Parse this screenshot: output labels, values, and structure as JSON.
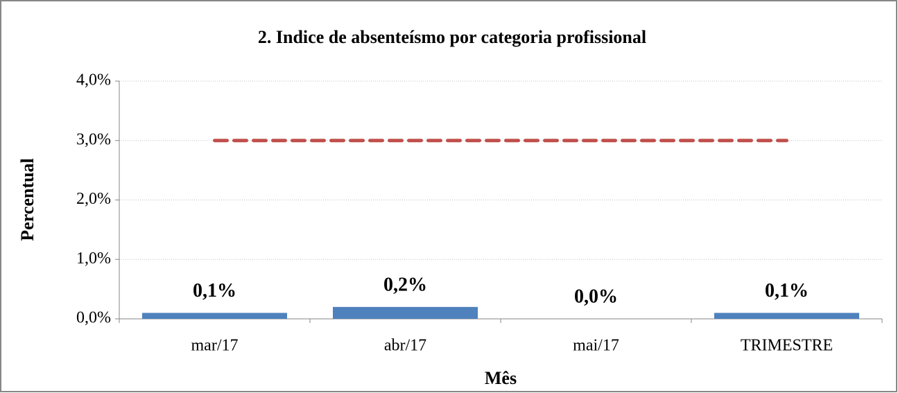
{
  "chart_data": {
    "type": "bar",
    "title": "2. Indice de absenteísmo por categoria profissional",
    "xlabel": "Mês",
    "ylabel": "Percentual",
    "categories": [
      "mar/17",
      "abr/17",
      "mai/17",
      "TRIMESTRE"
    ],
    "values": [
      0.1,
      0.2,
      0.0,
      0.1
    ],
    "value_labels": [
      "0,1%",
      "0,2%",
      "0,0%",
      "0,1%"
    ],
    "color": "#4f81bd",
    "overlay": {
      "type": "line",
      "values": [
        3,
        3,
        3,
        3
      ],
      "color": "#c0504d",
      "dashed": true
    },
    "ylim": [
      0,
      4
    ],
    "yticks": [
      {
        "value": 0,
        "label": "0,0%"
      },
      {
        "value": 1,
        "label": "1,0%"
      },
      {
        "value": 2,
        "label": "2,0%"
      },
      {
        "value": 3,
        "label": "3,0%"
      },
      {
        "value": 4,
        "label": "4,0%"
      }
    ],
    "grid": true
  }
}
